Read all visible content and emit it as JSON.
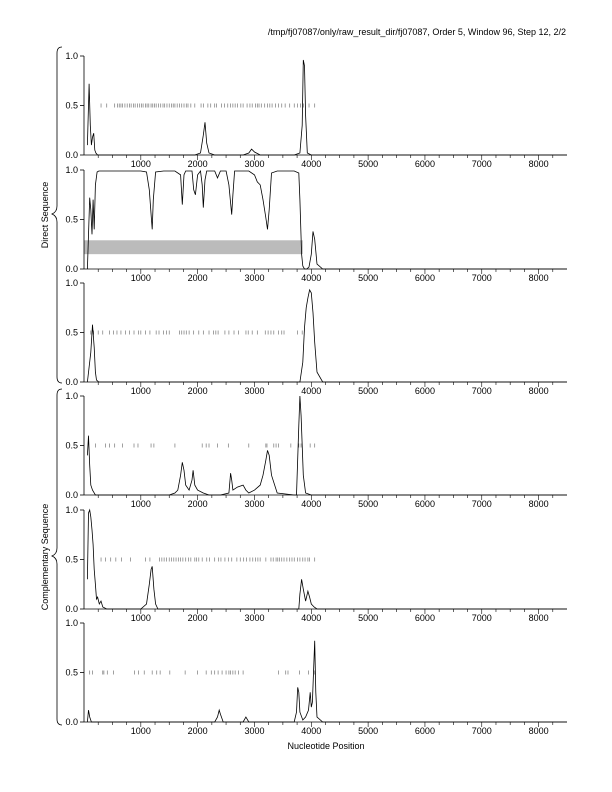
{
  "header": {
    "title": "/tmp/fj07087/only/raw_result_dir/fj07087, Order 5, Window 96, Step 12, 2/2"
  },
  "groups": [
    {
      "label": "Direct Sequence"
    },
    {
      "label": "Complementary Sequence"
    }
  ],
  "xlabel": "Nucleotide Position",
  "colors": {
    "line": "#000000",
    "band": "#bbbbbb",
    "tick": "#777777",
    "axis": "#000000"
  },
  "chart_data": [
    {
      "type": "line",
      "panel": 1,
      "x_ticks": [
        1000,
        2000,
        3000,
        4000,
        5000,
        6000,
        7000,
        8000
      ],
      "y_ticks": [
        "0.0",
        "0.5",
        "1.0"
      ],
      "xlim": [
        0,
        8500
      ],
      "ylim": [
        0,
        1
      ],
      "series": [
        {
          "x": [
            60,
            90,
            110,
            130,
            150,
            170,
            190,
            210,
            240,
            300,
            400,
            600,
            800,
            1000,
            1200,
            1400,
            1600,
            1800,
            1950,
            2050,
            2100,
            2130,
            2160,
            2200,
            2300,
            2500,
            2700,
            2800,
            2900,
            2950,
            3000,
            3100,
            3300,
            3500,
            3700,
            3800,
            3840,
            3860,
            3880,
            3900,
            3930,
            4000,
            4200,
            5000,
            6000,
            7000,
            8000,
            8500
          ],
          "y": [
            0.1,
            0.72,
            0.3,
            0.1,
            0.18,
            0.22,
            0.05,
            0.02,
            0.0,
            0.0,
            0.0,
            0.0,
            0.0,
            0.0,
            0.0,
            0.0,
            0.0,
            0.0,
            0.0,
            0.02,
            0.2,
            0.33,
            0.12,
            0.02,
            0.0,
            0.0,
            0.0,
            0.0,
            0.02,
            0.06,
            0.03,
            0.0,
            0.0,
            0.0,
            0.0,
            0.02,
            0.3,
            0.96,
            0.9,
            0.4,
            0.02,
            0.0,
            0.0,
            0.0,
            0.0,
            0.0,
            0.0,
            0.0
          ]
        }
      ],
      "marks": [
        300,
        400,
        540,
        590,
        620,
        650,
        680,
        720,
        760,
        800,
        830,
        870,
        900,
        940,
        980,
        1010,
        1040,
        1080,
        1110,
        1140,
        1180,
        1210,
        1240,
        1270,
        1310,
        1350,
        1390,
        1420,
        1460,
        1500,
        1540,
        1570,
        1600,
        1640,
        1680,
        1720,
        1760,
        1800,
        1830,
        1880,
        1950,
        2060,
        2100,
        2180,
        2230,
        2300,
        2330,
        2420,
        2470,
        2530,
        2580,
        2620,
        2660,
        2700,
        2760,
        2800,
        2870,
        2920,
        2960,
        3020,
        3050,
        3080,
        3120,
        3180,
        3230,
        3270,
        3310,
        3370,
        3420,
        3480,
        3540,
        3620,
        3700,
        3760,
        3810,
        3860,
        3960,
        4060
      ]
    },
    {
      "type": "line",
      "panel": 2,
      "x_ticks": [
        1000,
        2000,
        3000,
        4000,
        5000,
        6000,
        7000,
        8000
      ],
      "y_ticks": [
        "0.0",
        "0.5",
        "1.0"
      ],
      "xlim": [
        0,
        8500
      ],
      "ylim": [
        0,
        1
      ],
      "band": {
        "x0": 0,
        "x1": 3850,
        "y0": 0.15,
        "y1": 0.29
      },
      "series": [
        {
          "x": [
            60,
            100,
            120,
            140,
            160,
            180,
            200,
            230,
            260,
            300,
            400,
            600,
            800,
            1000,
            1100,
            1150,
            1180,
            1200,
            1220,
            1260,
            1400,
            1600,
            1700,
            1730,
            1760,
            1790,
            1850,
            1900,
            1930,
            1960,
            2000,
            2050,
            2080,
            2100,
            2130,
            2160,
            2200,
            2300,
            2350,
            2400,
            2450,
            2500,
            2550,
            2600,
            2620,
            2650,
            2700,
            2800,
            2900,
            3000,
            3050,
            3100,
            3150,
            3200,
            3230,
            3260,
            3300,
            3400,
            3600,
            3700,
            3780,
            3800,
            3830,
            3850,
            3880,
            3920,
            3960,
            4000,
            4030,
            4060,
            4100,
            4200,
            5000,
            6000,
            7000,
            8000,
            8500
          ],
          "y": [
            0.0,
            0.72,
            0.6,
            0.35,
            0.7,
            0.4,
            0.85,
            0.98,
            0.99,
            0.99,
            0.99,
            0.99,
            0.99,
            0.99,
            0.98,
            0.8,
            0.55,
            0.4,
            0.7,
            0.98,
            0.99,
            0.99,
            0.95,
            0.65,
            0.95,
            0.99,
            0.99,
            0.99,
            0.8,
            0.75,
            0.95,
            0.99,
            0.85,
            0.62,
            0.9,
            0.99,
            0.99,
            0.99,
            0.92,
            0.99,
            0.99,
            0.99,
            0.85,
            0.55,
            0.75,
            0.99,
            0.99,
            0.99,
            0.99,
            0.95,
            0.88,
            0.85,
            0.7,
            0.52,
            0.4,
            0.6,
            0.97,
            0.99,
            0.99,
            0.99,
            0.97,
            0.7,
            0.15,
            0.03,
            0.0,
            0.0,
            0.02,
            0.15,
            0.38,
            0.3,
            0.05,
            0.0,
            0.0,
            0.0,
            0.0,
            0.0,
            0.0
          ]
        }
      ],
      "marks": []
    },
    {
      "type": "line",
      "panel": 3,
      "x_ticks": [
        1000,
        2000,
        3000,
        4000,
        5000,
        6000,
        7000,
        8000
      ],
      "y_ticks": [
        "0.0",
        "0.5",
        "1.0"
      ],
      "xlim": [
        0,
        8500
      ],
      "ylim": [
        0,
        1
      ],
      "series": [
        {
          "x": [
            60,
            120,
            150,
            180,
            200,
            220,
            260,
            400,
            800,
            1200,
            1600,
            2000,
            2400,
            2800,
            3200,
            3600,
            3800,
            3850,
            3880,
            3910,
            3940,
            3970,
            4000,
            4030,
            4060,
            4100,
            4200,
            5000,
            6000,
            7000,
            8000,
            8500
          ],
          "y": [
            0.0,
            0.3,
            0.58,
            0.35,
            0.1,
            0.02,
            0.0,
            0.0,
            0.0,
            0.0,
            0.0,
            0.0,
            0.0,
            0.0,
            0.0,
            0.0,
            0.0,
            0.2,
            0.55,
            0.75,
            0.85,
            0.93,
            0.9,
            0.7,
            0.4,
            0.1,
            0.0,
            0.0,
            0.0,
            0.0,
            0.0,
            0.0
          ]
        }
      ],
      "marks": [
        120,
        170,
        250,
        330,
        450,
        520,
        580,
        650,
        730,
        800,
        880,
        960,
        1000,
        1080,
        1160,
        1270,
        1320,
        1400,
        1450,
        1500,
        1680,
        1720,
        1760,
        1800,
        1850,
        1930,
        2020,
        2100,
        2200,
        2280,
        2320,
        2360,
        2480,
        2550,
        2640,
        2720,
        2850,
        2890,
        2960,
        3050,
        3190,
        3240,
        3290,
        3340,
        3420,
        3480,
        3520,
        3760,
        3840
      ]
    },
    {
      "type": "line",
      "panel": 4,
      "x_ticks": [
        1000,
        2000,
        3000,
        4000,
        5000,
        6000,
        7000,
        8000
      ],
      "y_ticks": [
        "0.0",
        "0.5",
        "1.0"
      ],
      "xlim": [
        0,
        8500
      ],
      "ylim": [
        0,
        1
      ],
      "series": [
        {
          "x": [
            60,
            80,
            100,
            120,
            150,
            200,
            400,
            800,
            1200,
            1500,
            1600,
            1650,
            1700,
            1730,
            1760,
            1790,
            1850,
            1900,
            1920,
            1950,
            2000,
            2100,
            2200,
            2400,
            2550,
            2580,
            2600,
            2620,
            2700,
            2800,
            2850,
            2900,
            3000,
            3100,
            3150,
            3200,
            3230,
            3260,
            3300,
            3400,
            3700,
            3740,
            3780,
            3800,
            3820,
            3860,
            3900,
            4000,
            4100,
            4200,
            5000,
            6000,
            7000,
            8000,
            8500
          ],
          "y": [
            0.4,
            0.6,
            0.3,
            0.1,
            0.05,
            0.0,
            0.0,
            0.0,
            0.0,
            0.0,
            0.02,
            0.05,
            0.2,
            0.33,
            0.25,
            0.1,
            0.05,
            0.15,
            0.25,
            0.1,
            0.05,
            0.02,
            0.0,
            0.0,
            0.02,
            0.22,
            0.15,
            0.05,
            0.08,
            0.1,
            0.05,
            0.02,
            0.05,
            0.1,
            0.2,
            0.35,
            0.45,
            0.4,
            0.2,
            0.02,
            0.0,
            0.0,
            0.7,
            1.0,
            0.8,
            0.2,
            0.02,
            0.0,
            0.0,
            0.0,
            0.0,
            0.0,
            0.0,
            0.0,
            0.0
          ]
        }
      ],
      "marks": [
        200,
        380,
        450,
        540,
        680,
        880,
        950,
        1180,
        1230,
        1600,
        2080,
        2150,
        2200,
        2350,
        2540,
        2900,
        3200,
        3220,
        3340,
        3380,
        3420,
        3640,
        3780,
        3820,
        3980,
        4060
      ]
    },
    {
      "type": "line",
      "panel": 5,
      "x_ticks": [
        1000,
        2000,
        3000,
        4000,
        5000,
        6000,
        7000,
        8000
      ],
      "y_ticks": [
        "0.0",
        "0.5",
        "1.0"
      ],
      "xlim": [
        0,
        8500
      ],
      "ylim": [
        0,
        1
      ],
      "series": [
        {
          "x": [
            60,
            80,
            100,
            120,
            140,
            160,
            180,
            200,
            220,
            240,
            270,
            300,
            330,
            400,
            800,
            1000,
            1100,
            1150,
            1180,
            1200,
            1230,
            1260,
            1300,
            1600,
            2000,
            3000,
            3600,
            3780,
            3800,
            3830,
            3860,
            3900,
            3940,
            3970,
            4000,
            4050,
            4100,
            4200,
            5000,
            6000,
            7000,
            8000,
            8500
          ],
          "y": [
            0.3,
            0.97,
            1.0,
            0.93,
            0.8,
            0.65,
            0.4,
            0.25,
            0.1,
            0.12,
            0.05,
            0.08,
            0.02,
            0.0,
            0.0,
            0.0,
            0.05,
            0.25,
            0.4,
            0.43,
            0.2,
            0.05,
            0.0,
            0.0,
            0.0,
            0.0,
            0.0,
            0.0,
            0.15,
            0.3,
            0.2,
            0.08,
            0.18,
            0.12,
            0.05,
            0.02,
            0.0,
            0.0,
            0.0,
            0.0,
            0.0,
            0.0,
            0.0
          ]
        }
      ],
      "marks": [
        300,
        380,
        470,
        560,
        660,
        820,
        1080,
        1160,
        1330,
        1370,
        1410,
        1450,
        1500,
        1540,
        1580,
        1620,
        1660,
        1700,
        1740,
        1790,
        1840,
        1880,
        1950,
        1980,
        2020,
        2080,
        2160,
        2210,
        2300,
        2370,
        2410,
        2480,
        2540,
        2600,
        2690,
        2750,
        2810,
        2860,
        2920,
        2970,
        3020,
        3060,
        3100,
        3200,
        3290,
        3330,
        3380,
        3410,
        3440,
        3480,
        3520,
        3570,
        3620,
        3660,
        3700,
        3760,
        3800,
        3850,
        3890,
        3940,
        3970,
        4060
      ]
    },
    {
      "type": "line",
      "panel": 6,
      "x_ticks": [
        1000,
        2000,
        3000,
        4000,
        5000,
        6000,
        7000,
        8000
      ],
      "y_ticks": [
        "0.0",
        "0.5",
        "1.0"
      ],
      "xlim": [
        0,
        8500
      ],
      "ylim": [
        0,
        1
      ],
      "series": [
        {
          "x": [
            60,
            80,
            100,
            130,
            200,
            400,
            800,
            1200,
            1600,
            2000,
            2300,
            2350,
            2380,
            2400,
            2450,
            2600,
            2800,
            2850,
            2900,
            3000,
            3400,
            3700,
            3740,
            3760,
            3780,
            3800,
            3850,
            3900,
            3950,
            3980,
            4000,
            4020,
            4060,
            4080,
            4100,
            4200,
            5000,
            6000,
            7000,
            8000,
            8500
          ],
          "y": [
            0.0,
            0.12,
            0.05,
            0.0,
            0.0,
            0.0,
            0.0,
            0.0,
            0.0,
            0.0,
            0.0,
            0.05,
            0.12,
            0.08,
            0.0,
            0.0,
            0.0,
            0.05,
            0.0,
            0.0,
            0.0,
            0.0,
            0.1,
            0.35,
            0.3,
            0.1,
            0.02,
            0.05,
            0.12,
            0.3,
            0.15,
            0.2,
            0.82,
            0.3,
            0.05,
            0.0,
            0.0,
            0.0,
            0.0,
            0.0,
            0.0
          ]
        }
      ],
      "marks": [
        100,
        150,
        330,
        350,
        410,
        520,
        890,
        960,
        1060,
        1200,
        1280,
        1340,
        1510,
        1780,
        2000,
        2150,
        2240,
        2300,
        2360,
        2430,
        2500,
        2550,
        2580,
        2620,
        2660,
        2720,
        2800,
        3420,
        3550,
        3590,
        3790,
        3950,
        4060
      ]
    }
  ]
}
